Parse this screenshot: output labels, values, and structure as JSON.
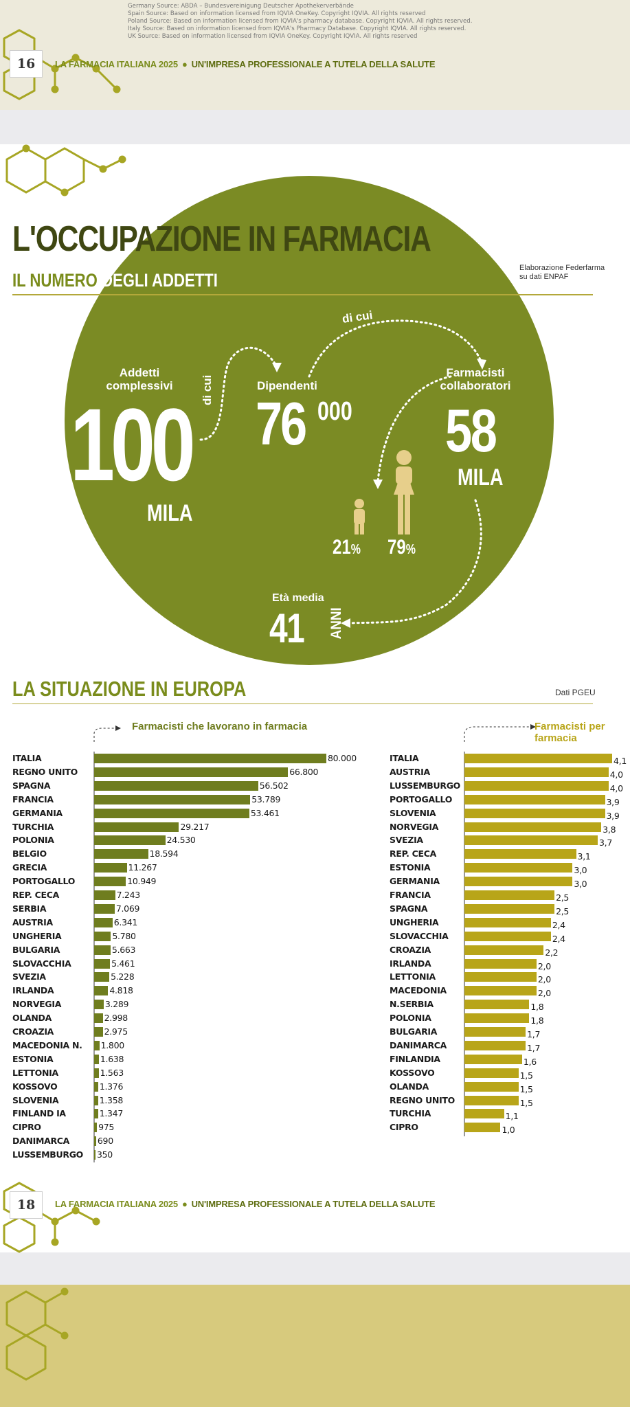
{
  "sources": [
    "Germany Source: ABDA – Bundesvereinigung Deutscher Apothekerverbände",
    "Spain Source: Based on information licensed from IQVIA OneKey. Copyright IQVIA. All rights reserved",
    "Poland Source: Based on information licensed from IQVIA's pharmacy database. Copyright IQVIA. All rights reserved.",
    "Italy Source: Based on information licensed from IQVIA's Pharmacy Database. Copyright IQVIA. All rights reserved.",
    "UK Source: Based on information licensed from IQVIA OneKey. Copyright IQVIA. All rights reserved"
  ],
  "header": {
    "page_number_top": "16",
    "page_number_bottom": "18",
    "running_head_a": "LA FARMACIA ITALIANA 2025",
    "running_head_b": "UN'IMPRESA PROFESSIONALE A TUTELA DELLA SALUTE",
    "bullet": "●"
  },
  "infographic": {
    "title": "L'OCCUPAZIONE IN FARMACIA",
    "subtitle_a": "IL NUMERO",
    "subtitle_b": "DEGLI ADDETTI",
    "source_note": "Elaborazione Federfarma su dati ENPAF",
    "addetti_label": "Addetti complessivi",
    "addetti_value": "100",
    "addetti_unit": "MILA",
    "di_cui": "di cui",
    "dipendenti_label": "Dipendenti",
    "dipendenti_value": "76",
    "dipendenti_suffix": "000",
    "farmacisti_label": "Farmacisti collaboratori",
    "farmacisti_value": "58",
    "farmacisti_unit": "MILA",
    "male_pct": "21",
    "female_pct": "79",
    "pct_sign": "%",
    "eta_label": "Età media",
    "eta_value": "41",
    "eta_unit": "ANNI",
    "colors": {
      "green": "#7b8b24",
      "gold": "#e7cf8b",
      "dark": "#3f4712"
    }
  },
  "europe": {
    "title": "LA SITUAZIONE IN EUROPA",
    "source_note": "Dati PGEU"
  },
  "chart_data": [
    {
      "type": "bar",
      "orientation": "horizontal",
      "title": "Farmacisti che lavorano in farmacia",
      "color": "#6f7d1f",
      "categories": [
        "ITALIA",
        "REGNO UNITO",
        "SPAGNA",
        "FRANCIA",
        "GERMANIA",
        "TURCHIA",
        "POLONIA",
        "BELGIO",
        "GRECIA",
        "PORTOGALLO",
        "REP. CECA",
        "SERBIA",
        "AUSTRIA",
        "UNGHERIA",
        "BULGARIA",
        "SLOVACCHIA",
        "SVEZIA",
        "IRLANDA",
        "NORVEGIA",
        "OLANDA",
        "CROAZIA",
        "MACEDONIA N.",
        "ESTONIA",
        "LETTONIA",
        "KOSSOVO",
        "SLOVENIA",
        "FINLAND IA",
        "CIPRO",
        "DANIMARCA",
        "LUSSEMBURGO"
      ],
      "values": [
        80000,
        66800,
        56502,
        53789,
        53461,
        29217,
        24530,
        18594,
        11267,
        10949,
        7243,
        7069,
        6341,
        5780,
        5663,
        5461,
        5228,
        4818,
        3289,
        2998,
        2975,
        1800,
        1638,
        1563,
        1376,
        1358,
        1347,
        975,
        690,
        350
      ],
      "labels": [
        "80.000",
        "66.800",
        "56.502",
        "53.789",
        "53.461",
        "29.217",
        "24.530",
        "18.594",
        "11.267",
        "10.949",
        "7.243",
        "7.069",
        "6.341",
        "5.780",
        "5.663",
        "5.461",
        "5.228",
        "4.818",
        "3.289",
        "2.998",
        "2.975",
        "1.800",
        "1.638",
        "1.563",
        "1.376",
        "1.358",
        "1.347",
        "975",
        "690",
        "350"
      ]
    },
    {
      "type": "bar",
      "orientation": "horizontal",
      "title": "Farmacisti per farmacia",
      "color": "#b8a519",
      "categories": [
        "ITALIA",
        "AUSTRIA",
        "LUSSEMBURGO",
        "PORTOGALLO",
        "SLOVENIA",
        "NORVEGIA",
        "SVEZIA",
        "REP. CECA",
        "ESTONIA",
        "GERMANIA",
        "FRANCIA",
        "SPAGNA",
        "UNGHERIA",
        "SLOVACCHIA",
        "CROAZIA",
        "IRLANDA",
        "LETTONIA",
        "MACEDONIA",
        "N.SERBIA",
        "POLONIA",
        "BULGARIA",
        "DANIMARCA",
        "FINLANDIA",
        "KOSSOVO",
        "OLANDA",
        "REGNO UNITO",
        "TURCHIA",
        "CIPRO"
      ],
      "values": [
        4.1,
        4.0,
        4.0,
        3.9,
        3.9,
        3.8,
        3.7,
        3.1,
        3.0,
        3.0,
        2.5,
        2.5,
        2.4,
        2.4,
        2.2,
        2.0,
        2.0,
        2.0,
        1.8,
        1.8,
        1.7,
        1.7,
        1.6,
        1.5,
        1.5,
        1.5,
        1.1,
        1.0
      ],
      "labels": [
        "4,1",
        "4,0",
        "4,0",
        "3,9",
        "3,9",
        "3,8",
        "3,7",
        "3,1",
        "3,0",
        "3,0",
        "2,5",
        "2,5",
        "2,4",
        "2,4",
        "2,2",
        "2,0",
        "2,0",
        "2,0",
        "1,8",
        "1,8",
        "1,7",
        "1,7",
        "1,6",
        "1,5",
        "1,5",
        "1,5",
        "1,1",
        "1,0"
      ]
    }
  ]
}
